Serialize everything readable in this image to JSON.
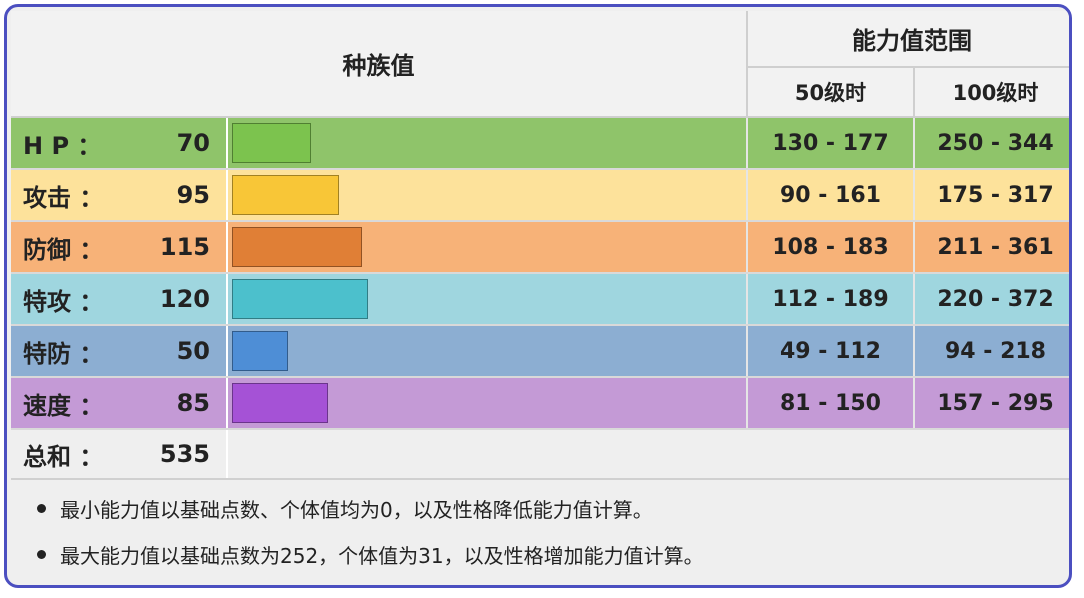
{
  "header": {
    "base_stats_title": "种族值",
    "range_title": "能力值范围",
    "level50_label": "50级时",
    "level100_label": "100级时"
  },
  "stats": [
    {
      "label": "H P ：",
      "value": "70",
      "bar_value": 70,
      "range50": "130 - 177",
      "range100": "250 - 344",
      "row_color": "#8fc46a",
      "label_bg": "#8fc46a",
      "bar_color": "#7cc34e"
    },
    {
      "label": "攻击 ：",
      "value": "95",
      "bar_value": 95,
      "range50": "90 - 161",
      "range100": "175 - 317",
      "row_color": "#fde29b",
      "label_bg": "#fde29b",
      "bar_color": "#f8c637"
    },
    {
      "label": "防御 ：",
      "value": "115",
      "bar_value": 115,
      "range50": "108 - 183",
      "range100": "211 - 361",
      "row_color": "#f7b278",
      "label_bg": "#f7b278",
      "bar_color": "#e07f36"
    },
    {
      "label": "特攻 ：",
      "value": "120",
      "bar_value": 120,
      "range50": "112 - 189",
      "range100": "220 - 372",
      "row_color": "#9fd6df",
      "label_bg": "#9fd6df",
      "bar_color": "#4cc0cc"
    },
    {
      "label": "特防 ：",
      "value": "50",
      "bar_value": 50,
      "range50": "49 - 112",
      "range100": "94 - 218",
      "row_color": "#8caed2",
      "label_bg": "#8caed2",
      "bar_color": "#4e8ed6"
    },
    {
      "label": "速度 ：",
      "value": "85",
      "bar_value": 85,
      "range50": "81 - 150",
      "range100": "157 - 295",
      "row_color": "#c49ad6",
      "label_bg": "#c49ad6",
      "bar_color": "#a552d6"
    }
  ],
  "total": {
    "label": "总和 ：",
    "value": "535"
  },
  "notes": [
    "最小能力值以基础点数、个体值均为0，以及性格降低能力值计算。",
    "最大能力值以基础点数为252，个体值为31，以及性格增加能力值计算。"
  ],
  "colors": {
    "frame_border": "#4b4fc0"
  }
}
